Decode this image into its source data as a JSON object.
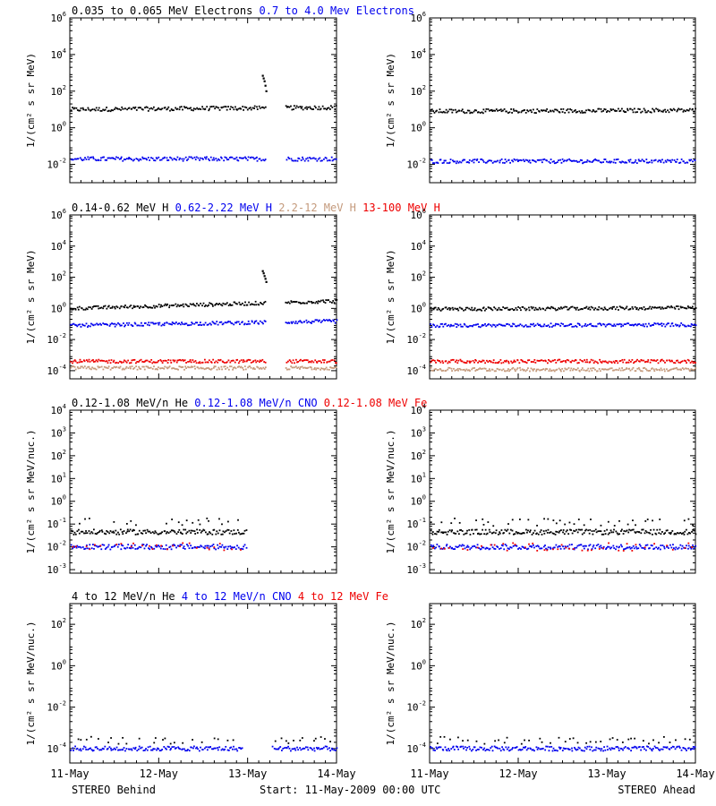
{
  "colors": {
    "black": "#000000",
    "blue": "#0000ee",
    "tan": "#c49a7c",
    "red": "#ee0000"
  },
  "footer": {
    "left": "STEREO Behind",
    "center": "Start: 11-May-2009 00:00 UTC",
    "right": "STEREO Ahead"
  },
  "x_ticks": [
    "11-May",
    "12-May",
    "13-May",
    "14-May"
  ],
  "chart_data": [
    {
      "row": 1,
      "type": "scatter",
      "ylog": true,
      "ylim": [
        0.001,
        1000000
      ],
      "ylabel": "1/(cm² s sr MeV)",
      "yticks": [
        {
          "b": "10",
          "e": "6"
        },
        {
          "b": "10",
          "e": "4"
        },
        {
          "b": "10",
          "e": "2"
        },
        {
          "b": "10",
          "e": "0"
        },
        {
          "b": "10",
          "e": "-2"
        }
      ],
      "ytick_values": [
        1000000,
        10000,
        100,
        1,
        0.01
      ],
      "legend": [
        {
          "text": "0.035 to 0.065 MeV Electrons",
          "color": "#000000"
        },
        {
          "text": "0.7 to 4.0 Mev Electrons",
          "color": "#0000ee"
        }
      ],
      "panels": [
        {
          "name": "STEREO Behind",
          "gap": [
            2.2,
            2.42
          ],
          "series": [
            {
              "color": "#000000",
              "y": 10,
              "y_end": 13
            },
            {
              "color": "#0000ee",
              "y": 0.02,
              "y_end": 0.02
            }
          ],
          "burst": [
            [
              2.16,
              700
            ],
            [
              2.17,
              500
            ],
            [
              2.18,
              350
            ],
            [
              2.19,
              200
            ],
            [
              2.2,
              100
            ]
          ]
        },
        {
          "name": "STEREO Ahead",
          "gap": null,
          "series": [
            {
              "color": "#000000",
              "y": 8,
              "y_end": 9
            },
            {
              "color": "#0000ee",
              "y": 0.015,
              "y_end": 0.015
            }
          ],
          "burst": []
        }
      ]
    },
    {
      "row": 2,
      "type": "scatter",
      "ylog": true,
      "ylim": [
        3e-05,
        1000000
      ],
      "ylabel": "1/(cm² s sr MeV)",
      "yticks": [
        {
          "b": "10",
          "e": "6"
        },
        {
          "b": "10",
          "e": "4"
        },
        {
          "b": "10",
          "e": "2"
        },
        {
          "b": "10",
          "e": "0"
        },
        {
          "b": "10",
          "e": "-2"
        },
        {
          "b": "10",
          "e": "-4"
        }
      ],
      "ytick_values": [
        1000000,
        10000,
        100,
        1,
        0.01,
        0.0001
      ],
      "legend": [
        {
          "text": "0.14-0.62 MeV H",
          "color": "#000000"
        },
        {
          "text": "0.62-2.22 MeV H",
          "color": "#0000ee"
        },
        {
          "text": "2.2-12 MeV H",
          "color": "#c49a7c"
        },
        {
          "text": "13-100 MeV H",
          "color": "#ee0000"
        }
      ],
      "panels": [
        {
          "name": "STEREO Behind",
          "gap": [
            2.2,
            2.42
          ],
          "series": [
            {
              "color": "#000000",
              "y": 1,
              "y_end": 3
            },
            {
              "color": "#0000ee",
              "y": 0.08,
              "y_end": 0.15
            },
            {
              "color": "#c49a7c",
              "y": 0.00015,
              "y_end": 0.00015
            },
            {
              "color": "#ee0000",
              "y": 0.0004,
              "y_end": 0.0004
            }
          ],
          "burst": [
            [
              2.16,
              250
            ],
            [
              2.17,
              180
            ],
            [
              2.18,
              120
            ],
            [
              2.19,
              80
            ],
            [
              2.2,
              50
            ]
          ]
        },
        {
          "name": "STEREO Ahead",
          "gap": null,
          "series": [
            {
              "color": "#000000",
              "y": 0.9,
              "y_end": 1.1
            },
            {
              "color": "#0000ee",
              "y": 0.08,
              "y_end": 0.09
            },
            {
              "color": "#c49a7c",
              "y": 0.00012,
              "y_end": 0.00012
            },
            {
              "color": "#ee0000",
              "y": 0.0004,
              "y_end": 0.0004
            }
          ],
          "burst": []
        }
      ]
    },
    {
      "row": 3,
      "type": "scatter",
      "ylog": true,
      "ylim": [
        0.0007,
        10000
      ],
      "ylabel": "1/(cm² s sr MeV/nuc.)",
      "yticks": [
        {
          "b": "10",
          "e": "4"
        },
        {
          "b": "10",
          "e": "3"
        },
        {
          "b": "10",
          "e": "2"
        },
        {
          "b": "10",
          "e": "1"
        },
        {
          "b": "10",
          "e": "0"
        },
        {
          "b": "10",
          "e": "-1"
        },
        {
          "b": "10",
          "e": "-2"
        },
        {
          "b": "10",
          "e": "-3"
        }
      ],
      "ytick_values": [
        10000,
        1000,
        100,
        10,
        1,
        0.1,
        0.01,
        0.001
      ],
      "legend": [
        {
          "text": "0.12-1.08 MeV/n He",
          "color": "#000000"
        },
        {
          "text": "0.12-1.08 MeV/n CNO",
          "color": "#0000ee"
        },
        {
          "text": "0.12-1.08 MeV Fe",
          "color": "#ee0000"
        }
      ],
      "panels": [
        {
          "name": "STEREO Behind",
          "gap": [
            1.98,
            3.0
          ],
          "series": [
            {
              "color": "#000000",
              "y": 0.045,
              "y_end": 0.045
            },
            {
              "color": "#000000",
              "y": 0.12,
              "y_end": 0.12,
              "sparse": true
            },
            {
              "color": "#0000ee",
              "y": 0.01,
              "y_end": 0.01
            },
            {
              "color": "#ee0000",
              "y": 0.01,
              "y_end": 0.01,
              "sparse": true
            }
          ],
          "burst": []
        },
        {
          "name": "STEREO Ahead",
          "gap": null,
          "series": [
            {
              "color": "#000000",
              "y": 0.045,
              "y_end": 0.045
            },
            {
              "color": "#000000",
              "y": 0.12,
              "y_end": 0.12,
              "sparse": true
            },
            {
              "color": "#0000ee",
              "y": 0.01,
              "y_end": 0.01
            },
            {
              "color": "#ee0000",
              "y": 0.01,
              "y_end": 0.01,
              "sparse": true
            }
          ],
          "burst": []
        }
      ]
    },
    {
      "row": 4,
      "type": "scatter",
      "ylog": true,
      "ylim": [
        2e-05,
        1000
      ],
      "ylabel": "1/(cm² s sr MeV/nuc.)",
      "yticks": [
        {
          "b": "10",
          "e": "2"
        },
        {
          "b": "10",
          "e": "0"
        },
        {
          "b": "10",
          "e": "-2"
        },
        {
          "b": "10",
          "e": "-4"
        }
      ],
      "ytick_values": [
        100,
        1,
        0.01,
        0.0001
      ],
      "legend": [
        {
          "text": "4 to 12 MeV/n He",
          "color": "#000000"
        },
        {
          "text": "4 to 12 MeV/n CNO",
          "color": "#0000ee"
        },
        {
          "text": "4 to 12 MeV Fe",
          "color": "#ee0000"
        }
      ],
      "panels": [
        {
          "name": "STEREO Behind",
          "gap": [
            1.93,
            2.27
          ],
          "series": [
            {
              "color": "#0000ee",
              "y": 0.0001,
              "y_end": 0.0001
            },
            {
              "color": "#000000",
              "y": 0.00025,
              "y_end": 0.00025,
              "sparse": true
            }
          ],
          "burst": []
        },
        {
          "name": "STEREO Ahead",
          "gap": null,
          "series": [
            {
              "color": "#0000ee",
              "y": 0.0001,
              "y_end": 0.0001
            },
            {
              "color": "#000000",
              "y": 0.00025,
              "y_end": 0.00025,
              "sparse": true
            }
          ],
          "burst": []
        }
      ]
    }
  ]
}
